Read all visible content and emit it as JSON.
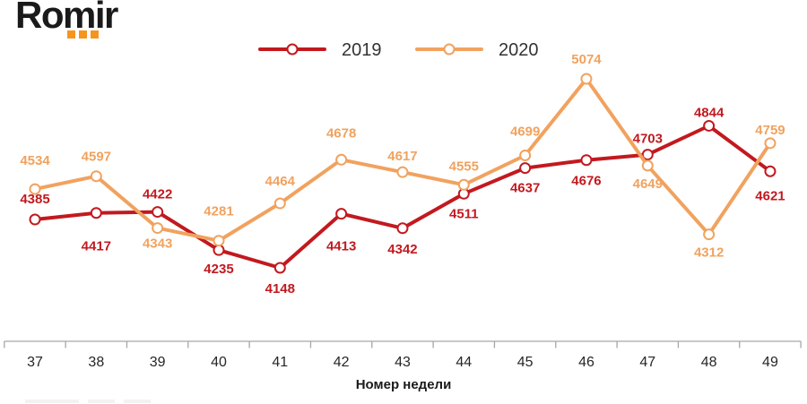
{
  "logo": {
    "text": "Romir"
  },
  "colors": {
    "background": "#FFFFFF",
    "logo_text": "#1A1A1A",
    "logo_dots": "#F7941D",
    "axis": "#A6A6A6",
    "tick_label": "#262626",
    "axis_title": "#1A1A1A",
    "legend_text": "#333333",
    "marker_fill": "#FFFFFF",
    "series_2019": "#C2191F",
    "series_2020": "#F1A25E"
  },
  "chart_data": {
    "type": "line",
    "title": "",
    "xlabel": "Номер недели",
    "ylabel": "",
    "categories": [
      37,
      38,
      39,
      40,
      41,
      42,
      43,
      44,
      45,
      46,
      47,
      48,
      49
    ],
    "series": [
      {
        "name": "2019",
        "color": "#C2191F",
        "values": [
          4385,
          4417,
          4422,
          4235,
          4148,
          4413,
          4342,
          4511,
          4637,
          4676,
          4703,
          4844,
          4621
        ],
        "label_dy": [
          -18,
          42,
          -15,
          26,
          28,
          41,
          28,
          27,
          27,
          28,
          -13,
          -10,
          32
        ]
      },
      {
        "name": "2020",
        "color": "#F1A25E",
        "values": [
          4534,
          4597,
          4343,
          4281,
          4464,
          4678,
          4617,
          4555,
          4699,
          5074,
          4649,
          4312,
          4759
        ],
        "label_dy": [
          -27,
          -17,
          22,
          -28,
          -20,
          -25,
          -13,
          -16,
          -22,
          -17,
          25,
          25,
          -10
        ]
      }
    ],
    "data_labels": true,
    "marker": "open-circle",
    "grid": false,
    "y_axis_visible": false,
    "legend_position": "top-center",
    "implied_y_range": [
      4100,
      5100
    ]
  }
}
